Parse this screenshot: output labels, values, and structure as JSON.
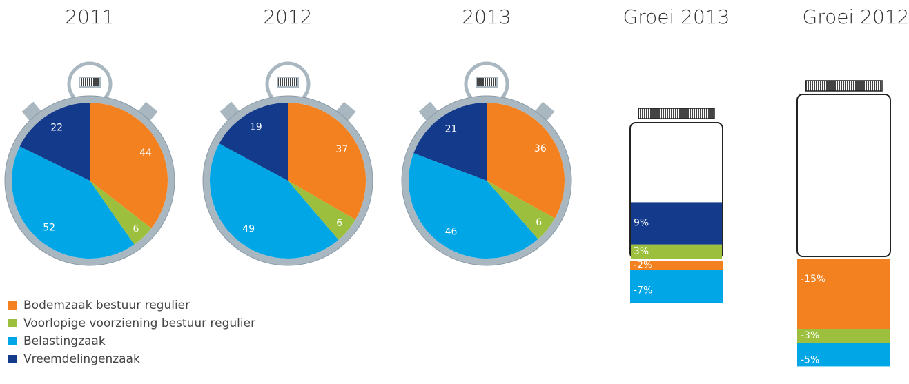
{
  "legend": {
    "labels": [
      "Bodemzaak bestuur regulier",
      "Voorlopige voorziening bestuur regulier",
      "Belastingzaak",
      "Vreemdelingenzaak"
    ],
    "colors": [
      "#f38120",
      "#9cc03d",
      "#00a6e6",
      "#143a8c"
    ]
  },
  "chart_data": [
    {
      "type": "pie",
      "title": "2011",
      "values": [
        44,
        6,
        52,
        22
      ]
    },
    {
      "type": "pie",
      "title": "2012",
      "values": [
        37,
        6,
        49,
        19
      ]
    },
    {
      "type": "pie",
      "title": "2013",
      "values": [
        36,
        6,
        46,
        21
      ]
    },
    {
      "type": "jar",
      "title": "Groei 2013",
      "values": [
        -2,
        3,
        -7,
        9
      ],
      "value_labels": [
        "-2%",
        "3%",
        "-7%",
        "9%"
      ]
    },
    {
      "type": "jar",
      "title": "Groei 2012",
      "values": [
        -15,
        -3,
        -5,
        null
      ],
      "value_labels": [
        "-15%",
        "-3%",
        "-5%",
        null
      ]
    }
  ]
}
